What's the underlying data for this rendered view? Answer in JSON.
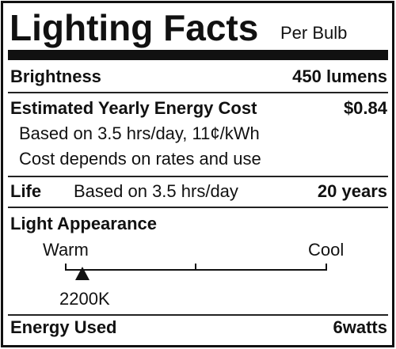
{
  "header": {
    "title": "Lighting Facts",
    "subtitle": "Per Bulb"
  },
  "brightness": {
    "label": "Brightness",
    "value": "450 lumens"
  },
  "cost": {
    "label": "Estimated Yearly Energy Cost",
    "value": "$0.84",
    "notes": [
      "Based on 3.5 hrs/day, 11¢/kWh",
      "Cost depends on rates and use"
    ]
  },
  "life": {
    "label": "Life",
    "note": "Based on 3.5 hrs/day",
    "value": "20 years"
  },
  "appearance": {
    "label": "Light Appearance",
    "warm": "Warm",
    "cool": "Cool",
    "marker": "2200K"
  },
  "energy": {
    "label": "Energy Used",
    "value": "6watts"
  }
}
